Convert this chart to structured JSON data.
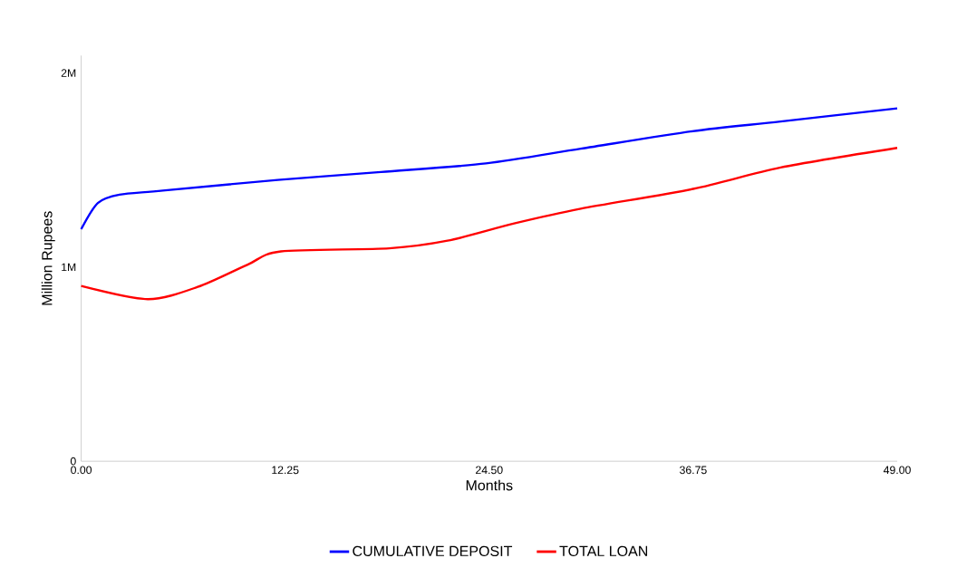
{
  "chart_data": {
    "type": "line",
    "xlabel": "Months",
    "ylabel": "Million Rupees",
    "xlim": [
      0,
      49
    ],
    "xticks": [
      {
        "value": 0,
        "label": "0.00"
      },
      {
        "value": 12.25,
        "label": "12.25"
      },
      {
        "value": 24.5,
        "label": "24.50"
      },
      {
        "value": 36.75,
        "label": "36.75"
      },
      {
        "value": 49,
        "label": "49.00"
      }
    ],
    "ylim": [
      0,
      2090000
    ],
    "yticks": [
      {
        "value": 0,
        "label": "0"
      },
      {
        "value": 1000000,
        "label": "1M"
      },
      {
        "value": 2000000,
        "label": "2M"
      }
    ],
    "legend": "bottom",
    "grid": false,
    "marker": "none",
    "line_style": "solid",
    "series": [
      {
        "name": "CUMULATIVE DEPOSIT",
        "color": "#0000ff",
        "x": [
          0,
          1,
          2.3,
          4.9,
          11.8,
          18,
          24.3,
          30,
          36.7,
          42,
          49
        ],
        "values": [
          1195000,
          1330000,
          1373000,
          1394000,
          1449000,
          1490000,
          1534000,
          1610000,
          1700000,
          1750000,
          1818000
        ]
      },
      {
        "name": "TOTAL LOAN",
        "color": "#ff0000",
        "x": [
          0,
          4,
          7,
          10,
          12,
          18.5,
          22,
          26,
          30,
          36.75,
          42,
          49
        ],
        "values": [
          903000,
          835000,
          898000,
          1013000,
          1081000,
          1097000,
          1136000,
          1225000,
          1301000,
          1403000,
          1513000,
          1614000
        ]
      }
    ]
  }
}
